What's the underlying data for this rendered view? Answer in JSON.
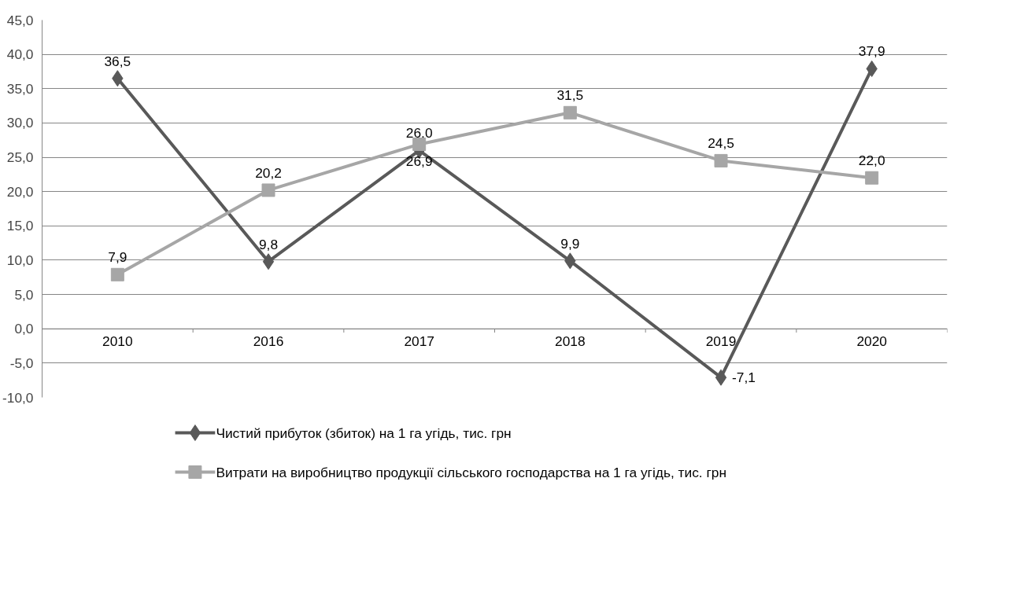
{
  "chart_data": {
    "type": "line",
    "categories": [
      "2010",
      "2016",
      "2017",
      "2018",
      "2019",
      "2020"
    ],
    "series": [
      {
        "name": "Чистий прибуток (збиток) на 1 га угідь, тис.  грн",
        "color": "#595959",
        "marker": "diamond",
        "values": [
          36.5,
          9.8,
          26.0,
          9.9,
          -7.1,
          37.9
        ],
        "value_labels": [
          "36,5",
          "9,8",
          "26,0",
          "9,9",
          "-7,1",
          "37,9"
        ]
      },
      {
        "name": "Витрати на виробництво продукції сільського господарства на 1 га угідь, тис. грн",
        "color": "#a6a6a6",
        "marker": "square",
        "values": [
          7.9,
          20.2,
          26.9,
          31.5,
          24.5,
          22.0
        ],
        "value_labels": [
          "7,9",
          "20,2",
          "26,9",
          "31,5",
          "24,5",
          "22,0"
        ]
      }
    ],
    "ylim": [
      -10,
      45
    ],
    "yticks": [
      {
        "value": -10,
        "label": "-10,0"
      },
      {
        "value": -5,
        "label": "-5,0"
      },
      {
        "value": 0,
        "label": "0,0"
      },
      {
        "value": 5,
        "label": "5,0"
      },
      {
        "value": 10,
        "label": "10,0"
      },
      {
        "value": 15,
        "label": "15,0"
      },
      {
        "value": 20,
        "label": "20,0"
      },
      {
        "value": 25,
        "label": "25,0"
      },
      {
        "value": 30,
        "label": "30,0"
      },
      {
        "value": 35,
        "label": "35,0"
      },
      {
        "value": 40,
        "label": "40,0"
      },
      {
        "value": 45,
        "label": "45,0"
      }
    ],
    "grid": "y",
    "legend": "bottom",
    "line_style": "solid"
  }
}
